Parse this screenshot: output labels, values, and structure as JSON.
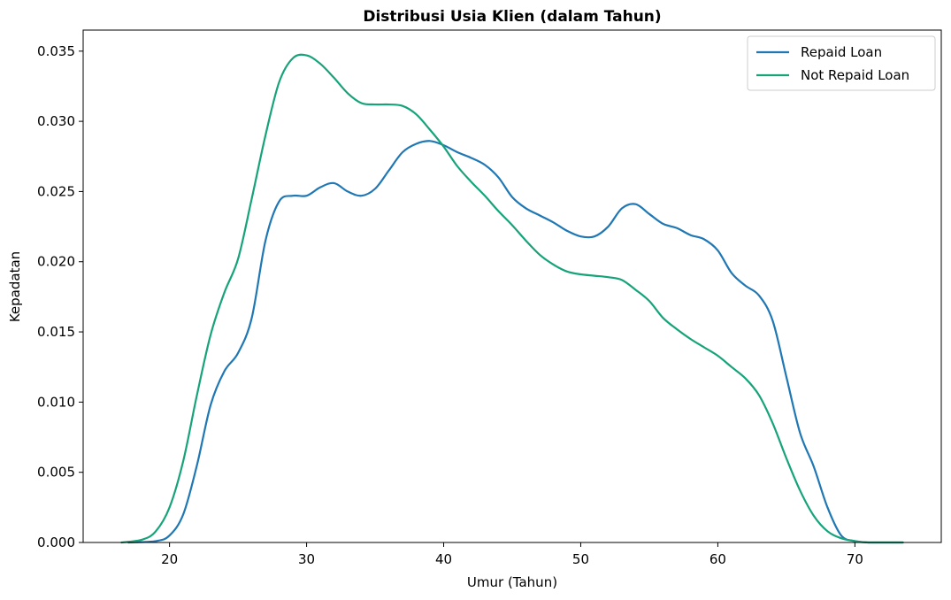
{
  "chart_data": {
    "type": "line",
    "title": "Distribusi Usia Klien (dalam Tahun)",
    "xlabel": "Umur (Tahun)",
    "ylabel": "Kepadatan",
    "xlim": [
      13.7,
      76.3
    ],
    "ylim": [
      0,
      0.0365
    ],
    "xticks": [
      20,
      30,
      40,
      50,
      60,
      70
    ],
    "xtick_labels": [
      "20",
      "30",
      "40",
      "50",
      "60",
      "70"
    ],
    "yticks": [
      0,
      0.005,
      0.01,
      0.015,
      0.02,
      0.025,
      0.03,
      0.035
    ],
    "ytick_labels": [
      "0.000",
      "0.005",
      "0.010",
      "0.015",
      "0.020",
      "0.025",
      "0.030",
      "0.035"
    ],
    "grid": false,
    "legend_position": "top-right",
    "series": [
      {
        "name": "Repaid Loan",
        "color": "#1f77b4",
        "x": [
          17,
          19,
          20,
          21,
          22,
          23,
          24,
          25,
          26,
          27,
          28,
          29,
          30,
          31,
          32,
          33,
          34,
          35,
          36,
          37,
          38,
          39,
          40,
          41,
          42,
          43,
          44,
          45,
          46,
          47,
          48,
          49,
          50,
          51,
          52,
          53,
          54,
          55,
          56,
          57,
          58,
          59,
          60,
          61,
          62,
          63,
          64,
          65,
          66,
          67,
          68,
          69,
          70,
          71,
          72,
          73.5
        ],
        "y": [
          0.0,
          0.0001,
          0.0005,
          0.002,
          0.0055,
          0.0098,
          0.0122,
          0.0135,
          0.016,
          0.0215,
          0.0243,
          0.0247,
          0.0247,
          0.0253,
          0.0256,
          0.025,
          0.0247,
          0.0252,
          0.0265,
          0.0278,
          0.0284,
          0.0286,
          0.0283,
          0.0278,
          0.0274,
          0.0269,
          0.026,
          0.0246,
          0.0238,
          0.0233,
          0.0228,
          0.0222,
          0.0218,
          0.0218,
          0.0225,
          0.0238,
          0.0241,
          0.0234,
          0.0227,
          0.0224,
          0.0219,
          0.0216,
          0.0208,
          0.0192,
          0.0183,
          0.0176,
          0.0158,
          0.0118,
          0.0078,
          0.0054,
          0.0025,
          0.0005,
          0.0001,
          0.0,
          0.0,
          0.0
        ]
      },
      {
        "name": "Not Repaid Loan",
        "color": "#17a37a",
        "x": [
          16.5,
          18,
          19,
          20,
          21,
          22,
          23,
          24,
          25,
          26,
          27,
          28,
          29,
          30,
          31,
          32,
          33,
          34,
          35,
          36,
          37,
          38,
          39,
          40,
          41,
          42,
          43,
          44,
          45,
          46,
          47,
          48,
          49,
          50,
          51,
          52,
          53,
          54,
          55,
          56,
          57,
          58,
          59,
          60,
          61,
          62,
          63,
          64,
          65,
          66,
          67,
          68,
          69,
          70,
          71,
          72,
          73.5
        ],
        "y": [
          0.0,
          0.0002,
          0.0008,
          0.0025,
          0.0058,
          0.0105,
          0.0148,
          0.0178,
          0.0202,
          0.0245,
          0.029,
          0.0328,
          0.0345,
          0.0347,
          0.0341,
          0.0331,
          0.032,
          0.0313,
          0.0312,
          0.0312,
          0.0311,
          0.0305,
          0.0294,
          0.0282,
          0.0268,
          0.0257,
          0.0247,
          0.0236,
          0.0226,
          0.0215,
          0.0205,
          0.0198,
          0.0193,
          0.0191,
          0.019,
          0.0189,
          0.0187,
          0.018,
          0.0172,
          0.016,
          0.0152,
          0.0145,
          0.0139,
          0.0133,
          0.0125,
          0.0117,
          0.0105,
          0.0085,
          0.006,
          0.0037,
          0.0019,
          0.0008,
          0.0003,
          0.0001,
          0.0,
          0.0,
          0.0
        ]
      }
    ]
  }
}
